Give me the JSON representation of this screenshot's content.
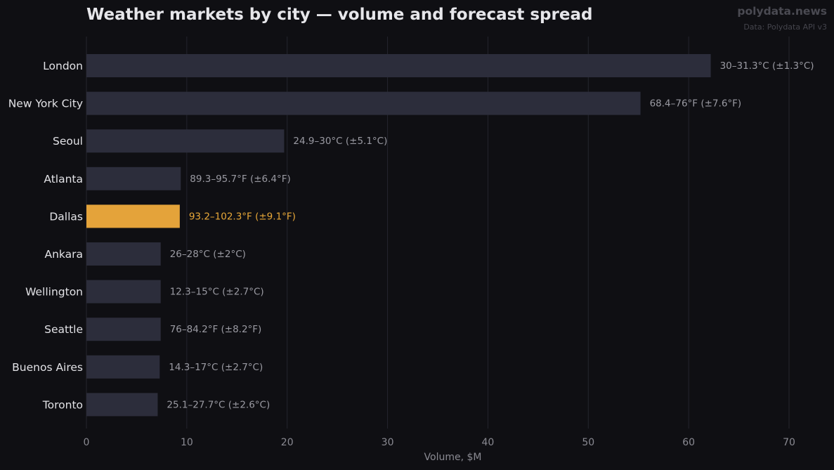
{
  "header": {
    "title": "Weather markets by city — volume and forecast spread",
    "brand": "polydata.news",
    "source": "Data: Polydata API v3"
  },
  "colors": {
    "background": "#0f0f13",
    "bar": "#2c2d3b",
    "highlight": "#e4a33a",
    "grid": "#24252e"
  },
  "chart_data": {
    "type": "bar",
    "orientation": "horizontal",
    "title": "Weather markets by city — volume and forecast spread",
    "xlabel": "Volume, $M",
    "ylabel": "",
    "xlim": [
      0,
      73
    ],
    "xticks": [
      0,
      10,
      20,
      30,
      40,
      50,
      60,
      70
    ],
    "grid": "vertical",
    "highlight_category": "Dallas",
    "categories": [
      "London",
      "New York City",
      "Seoul",
      "Atlanta",
      "Dallas",
      "Ankara",
      "Wellington",
      "Seattle",
      "Buenos Aires",
      "Toronto"
    ],
    "values": [
      62.2,
      55.2,
      19.7,
      9.4,
      9.3,
      7.4,
      7.4,
      7.4,
      7.3,
      7.1
    ],
    "value_labels": [
      "30–31.3°C (±1.3°C)",
      "68.4–76°F (±7.6°F)",
      "24.9–30°C (±5.1°C)",
      "89.3–95.7°F (±6.4°F)",
      "93.2–102.3°F (±9.1°F)",
      "26–28°C (±2°C)",
      "12.3–15°C (±2.7°C)",
      "76–84.2°F (±8.2°F)",
      "14.3–17°C (±2.7°C)",
      "25.1–27.7°C (±2.6°C)"
    ]
  }
}
